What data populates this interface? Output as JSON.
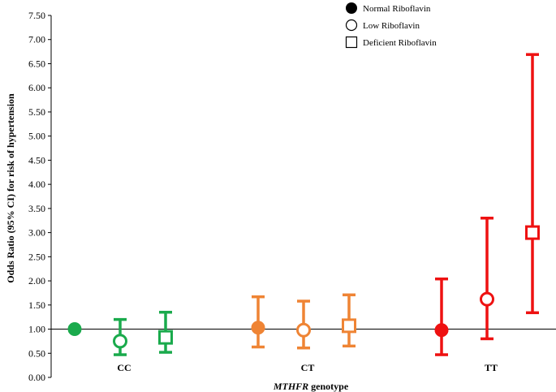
{
  "chart_data": {
    "type": "scatter",
    "title": "",
    "xlabel_italic": "MTHFR",
    "xlabel_rest": " genotype",
    "ylabel": "Odds Ratio (95% CI) for risk of hypertension",
    "ylim": [
      0,
      7.5
    ],
    "yticks": [
      "0.00",
      "0.50",
      "1.00",
      "1.50",
      "2.00",
      "2.50",
      "3.00",
      "3.50",
      "4.00",
      "4.50",
      "5.00",
      "5.50",
      "6.00",
      "6.50",
      "7.00",
      "7.50"
    ],
    "reference_line": 1.0,
    "categories": [
      "CC",
      "CT",
      "TT"
    ],
    "category_colors": [
      "#1aaa4c",
      "#ef8434",
      "#ee1111"
    ],
    "series": [
      {
        "name": "Normal Riboflavin",
        "marker": "filled-circle",
        "or": [
          1.0,
          1.03,
          0.98
        ],
        "lower": [
          null,
          0.63,
          0.47
        ],
        "upper": [
          null,
          1.67,
          2.04
        ]
      },
      {
        "name": "Low Riboflavin",
        "marker": "open-circle",
        "or": [
          0.75,
          0.98,
          1.62
        ],
        "lower": [
          0.47,
          0.61,
          0.8
        ],
        "upper": [
          1.2,
          1.58,
          3.3
        ]
      },
      {
        "name": "Deficient  Riboflavin",
        "marker": "open-square",
        "or": [
          0.83,
          1.07,
          3.0
        ],
        "lower": [
          0.52,
          0.65,
          1.34
        ],
        "upper": [
          1.35,
          1.71,
          6.69
        ]
      }
    ],
    "legend_position": "top-right",
    "grid": false
  }
}
